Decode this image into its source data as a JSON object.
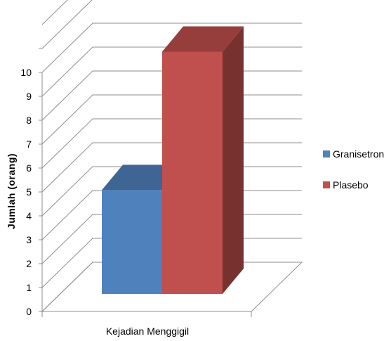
{
  "chart_data": {
    "type": "bar",
    "categories": [
      "Kejadian Menggigil"
    ],
    "series": [
      {
        "name": "Granisetron",
        "values": [
          4
        ],
        "color": "#4F81BD"
      },
      {
        "name": "Plasebo",
        "values": [
          10
        ],
        "color": "#C0504D"
      }
    ],
    "xlabel": "",
    "ylabel": "Jumlah (orang)",
    "ylim": [
      0,
      12
    ],
    "yticks": [
      0,
      1,
      2,
      3,
      4,
      5,
      6,
      7,
      8,
      9,
      10
    ],
    "grid": true,
    "legend_position": "right",
    "style": "3d-clustered"
  }
}
